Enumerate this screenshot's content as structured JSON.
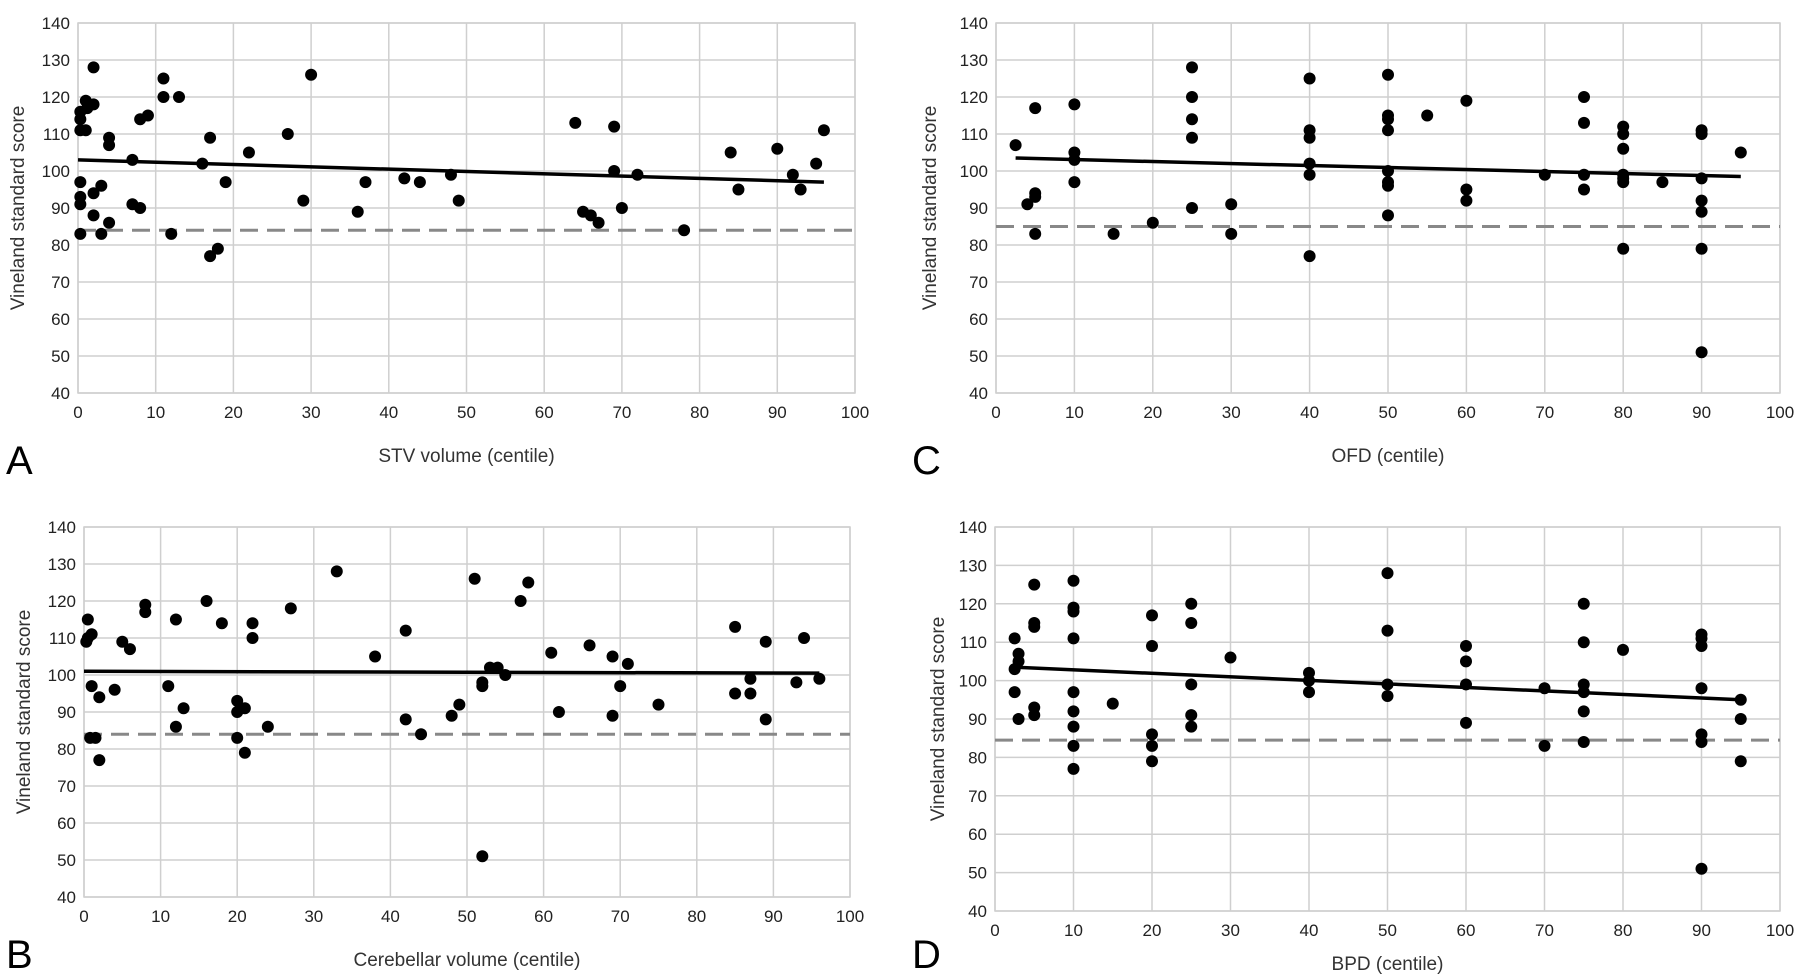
{
  "chart_data": [
    {
      "panel_label": "A",
      "type": "scatter",
      "xlabel": "STV volume (centile)",
      "ylabel": "Vineland standard score",
      "xlim": [
        0,
        100
      ],
      "ylim": [
        40,
        140
      ],
      "xticks": [
        0,
        10,
        20,
        30,
        40,
        50,
        60,
        70,
        80,
        90,
        100
      ],
      "yticks": [
        40,
        50,
        60,
        70,
        80,
        90,
        100,
        110,
        120,
        130,
        140
      ],
      "grid": true,
      "points": [
        [
          0.3,
          114
        ],
        [
          0.3,
          116
        ],
        [
          0.3,
          111
        ],
        [
          0.3,
          97
        ],
        [
          0.3,
          93
        ],
        [
          0.3,
          91
        ],
        [
          0.3,
          83
        ],
        [
          1,
          119
        ],
        [
          1,
          111
        ],
        [
          1.2,
          117
        ],
        [
          2,
          128
        ],
        [
          2,
          118
        ],
        [
          2,
          94
        ],
        [
          2,
          88
        ],
        [
          3,
          96
        ],
        [
          3,
          83
        ],
        [
          4,
          109
        ],
        [
          4,
          107
        ],
        [
          4,
          86
        ],
        [
          7,
          103
        ],
        [
          7,
          91
        ],
        [
          8,
          114
        ],
        [
          8,
          90
        ],
        [
          9,
          115
        ],
        [
          11,
          125
        ],
        [
          11,
          120
        ],
        [
          12,
          83
        ],
        [
          13,
          120
        ],
        [
          16,
          102
        ],
        [
          17,
          109
        ],
        [
          17,
          77
        ],
        [
          18,
          79
        ],
        [
          19,
          97
        ],
        [
          22,
          105
        ],
        [
          27,
          110
        ],
        [
          29,
          92
        ],
        [
          30,
          126
        ],
        [
          36,
          89
        ],
        [
          37,
          97
        ],
        [
          42,
          98
        ],
        [
          44,
          97
        ],
        [
          48,
          99
        ],
        [
          49,
          92
        ],
        [
          64,
          113
        ],
        [
          65,
          89
        ],
        [
          66,
          88
        ],
        [
          67,
          86
        ],
        [
          69,
          112
        ],
        [
          69,
          100
        ],
        [
          70,
          90
        ],
        [
          72,
          99
        ],
        [
          78,
          84
        ],
        [
          84,
          105
        ],
        [
          85,
          95
        ],
        [
          90,
          106
        ],
        [
          92,
          99
        ],
        [
          93,
          95
        ],
        [
          95,
          102
        ],
        [
          96,
          111
        ]
      ],
      "trend_line": [
        [
          0,
          103
        ],
        [
          96,
          97
        ]
      ],
      "reference_line_y": 84
    },
    {
      "panel_label": "C",
      "type": "scatter",
      "xlabel": "OFD (centile)",
      "ylabel": "Vineland standard score",
      "xlim": [
        0,
        100
      ],
      "ylim": [
        40,
        140
      ],
      "xticks": [
        0,
        10,
        20,
        30,
        40,
        50,
        60,
        70,
        80,
        90,
        100
      ],
      "yticks": [
        40,
        50,
        60,
        70,
        80,
        90,
        100,
        110,
        120,
        130,
        140
      ],
      "grid": true,
      "points": [
        [
          2.5,
          107
        ],
        [
          4,
          91
        ],
        [
          5,
          117
        ],
        [
          5,
          94
        ],
        [
          5,
          93
        ],
        [
          5,
          83
        ],
        [
          10,
          118
        ],
        [
          10,
          105
        ],
        [
          10,
          103
        ],
        [
          10,
          97
        ],
        [
          15,
          83
        ],
        [
          20,
          86
        ],
        [
          25,
          128
        ],
        [
          25,
          120
        ],
        [
          25,
          114
        ],
        [
          25,
          109
        ],
        [
          25,
          90
        ],
        [
          30,
          91
        ],
        [
          30,
          83
        ],
        [
          40,
          125
        ],
        [
          40,
          111
        ],
        [
          40,
          109
        ],
        [
          40,
          102
        ],
        [
          40,
          99
        ],
        [
          40,
          77
        ],
        [
          50,
          126
        ],
        [
          50,
          115
        ],
        [
          50,
          114
        ],
        [
          50,
          111
        ],
        [
          50,
          100
        ],
        [
          50,
          97
        ],
        [
          50,
          96
        ],
        [
          50,
          88
        ],
        [
          55,
          115
        ],
        [
          60,
          119
        ],
        [
          60,
          95
        ],
        [
          60,
          92
        ],
        [
          70,
          99
        ],
        [
          75,
          120
        ],
        [
          75,
          113
        ],
        [
          75,
          99
        ],
        [
          75,
          95
        ],
        [
          80,
          112
        ],
        [
          80,
          110
        ],
        [
          80,
          106
        ],
        [
          80,
          99
        ],
        [
          80,
          98
        ],
        [
          80,
          97
        ],
        [
          80,
          79
        ],
        [
          85,
          97
        ],
        [
          90,
          111
        ],
        [
          90,
          110
        ],
        [
          90,
          98
        ],
        [
          90,
          92
        ],
        [
          90,
          89
        ],
        [
          90,
          79
        ],
        [
          90,
          51
        ],
        [
          95,
          105
        ]
      ],
      "trend_line": [
        [
          2.5,
          103.5
        ],
        [
          95,
          98.5
        ]
      ],
      "reference_line_y": 85
    },
    {
      "panel_label": "B",
      "type": "scatter",
      "xlabel": "Cerebellar volume (centile)",
      "ylabel": "Vineland standard score",
      "xlim": [
        0,
        100
      ],
      "ylim": [
        40,
        140
      ],
      "xticks": [
        0,
        10,
        20,
        30,
        40,
        50,
        60,
        70,
        80,
        90,
        100
      ],
      "yticks": [
        40,
        50,
        60,
        70,
        80,
        90,
        100,
        110,
        120,
        130,
        140
      ],
      "grid": true,
      "points": [
        [
          0.3,
          109
        ],
        [
          0.5,
          115
        ],
        [
          0.5,
          110
        ],
        [
          0.8,
          83
        ],
        [
          1,
          111
        ],
        [
          1,
          97
        ],
        [
          1.5,
          83
        ],
        [
          2,
          94
        ],
        [
          2,
          77
        ],
        [
          4,
          96
        ],
        [
          5,
          109
        ],
        [
          6,
          107
        ],
        [
          8,
          119
        ],
        [
          8,
          117
        ],
        [
          11,
          97
        ],
        [
          12,
          115
        ],
        [
          12,
          86
        ],
        [
          13,
          91
        ],
        [
          16,
          120
        ],
        [
          18,
          114
        ],
        [
          20,
          93
        ],
        [
          20,
          90
        ],
        [
          20,
          83
        ],
        [
          21,
          91
        ],
        [
          21,
          79
        ],
        [
          22,
          114
        ],
        [
          22,
          110
        ],
        [
          24,
          86
        ],
        [
          27,
          118
        ],
        [
          33,
          128
        ],
        [
          38,
          105
        ],
        [
          42,
          112
        ],
        [
          42,
          88
        ],
        [
          44,
          84
        ],
        [
          48,
          89
        ],
        [
          49,
          92
        ],
        [
          51,
          126
        ],
        [
          52,
          98
        ],
        [
          52,
          97
        ],
        [
          52,
          51
        ],
        [
          53,
          102
        ],
        [
          54,
          102
        ],
        [
          55,
          100
        ],
        [
          57,
          120
        ],
        [
          58,
          125
        ],
        [
          61,
          106
        ],
        [
          62,
          90
        ],
        [
          66,
          108
        ],
        [
          69,
          105
        ],
        [
          69,
          89
        ],
        [
          70,
          97
        ],
        [
          71,
          103
        ],
        [
          75,
          92
        ],
        [
          85,
          113
        ],
        [
          85,
          95
        ],
        [
          87,
          99
        ],
        [
          87,
          95
        ],
        [
          89,
          109
        ],
        [
          89,
          88
        ],
        [
          93,
          98
        ],
        [
          94,
          110
        ],
        [
          96,
          99
        ]
      ],
      "trend_line": [
        [
          0,
          101
        ],
        [
          96,
          100.5
        ]
      ],
      "reference_line_y": 84
    },
    {
      "panel_label": "D",
      "type": "scatter",
      "xlabel": "BPD (centile)",
      "ylabel": "Vineland standard score",
      "xlim": [
        0,
        100
      ],
      "ylim": [
        40,
        140
      ],
      "xticks": [
        0,
        10,
        20,
        30,
        40,
        50,
        60,
        70,
        80,
        90,
        100
      ],
      "yticks": [
        40,
        50,
        60,
        70,
        80,
        90,
        100,
        110,
        120,
        130,
        140
      ],
      "grid": true,
      "points": [
        [
          2.5,
          111
        ],
        [
          2.5,
          103
        ],
        [
          2.5,
          97
        ],
        [
          3,
          107
        ],
        [
          3,
          105
        ],
        [
          3,
          90
        ],
        [
          5,
          125
        ],
        [
          5,
          115
        ],
        [
          5,
          114
        ],
        [
          5,
          93
        ],
        [
          5,
          91
        ],
        [
          10,
          126
        ],
        [
          10,
          119
        ],
        [
          10,
          118
        ],
        [
          10,
          111
        ],
        [
          10,
          97
        ],
        [
          10,
          92
        ],
        [
          10,
          88
        ],
        [
          10,
          83
        ],
        [
          10,
          77
        ],
        [
          15,
          94
        ],
        [
          20,
          117
        ],
        [
          20,
          109
        ],
        [
          20,
          86
        ],
        [
          20,
          83
        ],
        [
          20,
          79
        ],
        [
          25,
          120
        ],
        [
          25,
          115
        ],
        [
          25,
          99
        ],
        [
          25,
          91
        ],
        [
          25,
          88
        ],
        [
          30,
          106
        ],
        [
          40,
          102
        ],
        [
          40,
          100
        ],
        [
          40,
          97
        ],
        [
          50,
          128
        ],
        [
          50,
          113
        ],
        [
          50,
          99
        ],
        [
          50,
          96
        ],
        [
          60,
          109
        ],
        [
          60,
          105
        ],
        [
          60,
          99
        ],
        [
          60,
          89
        ],
        [
          70,
          98
        ],
        [
          70,
          83
        ],
        [
          75,
          120
        ],
        [
          75,
          110
        ],
        [
          75,
          99
        ],
        [
          75,
          97
        ],
        [
          75,
          92
        ],
        [
          75,
          84
        ],
        [
          80,
          108
        ],
        [
          90,
          112
        ],
        [
          90,
          111
        ],
        [
          90,
          109
        ],
        [
          90,
          98
        ],
        [
          90,
          86
        ],
        [
          90,
          84
        ],
        [
          90,
          51
        ],
        [
          95,
          95
        ],
        [
          95,
          90
        ],
        [
          95,
          79
        ]
      ],
      "trend_line": [
        [
          2.5,
          103.5
        ],
        [
          95,
          95
        ]
      ],
      "reference_line_y": 84.5
    }
  ]
}
